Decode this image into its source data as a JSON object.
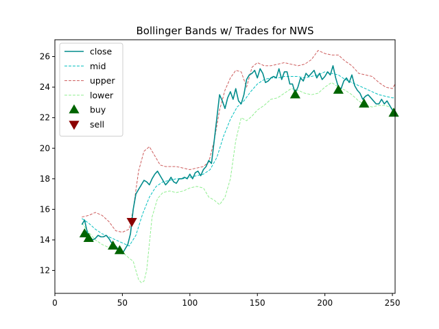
{
  "chart_data": {
    "type": "line",
    "title": "Bollinger Bands w/ Trades for NWS",
    "xlabel": "",
    "ylabel": "",
    "xlim": [
      0,
      252
    ],
    "ylim": [
      10.5,
      27.1
    ],
    "xticks": [
      0,
      50,
      100,
      150,
      200,
      250
    ],
    "yticks": [
      12,
      14,
      16,
      18,
      20,
      22,
      24,
      26
    ],
    "grid": false,
    "legend_position": "top-left",
    "series": [
      {
        "name": "close",
        "color": "#008b8b",
        "style": "solid",
        "points": [
          [
            20,
            15.0
          ],
          [
            22,
            15.3
          ],
          [
            24,
            14.5
          ],
          [
            26,
            14.2
          ],
          [
            28,
            14.0
          ],
          [
            30,
            14.1
          ],
          [
            32,
            14.3
          ],
          [
            34,
            14.2
          ],
          [
            36,
            14.2
          ],
          [
            38,
            14.3
          ],
          [
            40,
            14.1
          ],
          [
            42,
            13.8
          ],
          [
            44,
            13.7
          ],
          [
            46,
            13.5
          ],
          [
            48,
            13.2
          ],
          [
            50,
            13.1
          ],
          [
            52,
            13.4
          ],
          [
            54,
            13.7
          ],
          [
            56,
            14.4
          ],
          [
            58,
            16.0
          ],
          [
            60,
            17.0
          ],
          [
            62,
            17.3
          ],
          [
            64,
            17.6
          ],
          [
            66,
            17.9
          ],
          [
            68,
            17.8
          ],
          [
            70,
            17.6
          ],
          [
            72,
            18.0
          ],
          [
            74,
            18.3
          ],
          [
            76,
            18.5
          ],
          [
            78,
            18.2
          ],
          [
            80,
            17.9
          ],
          [
            82,
            17.6
          ],
          [
            84,
            17.8
          ],
          [
            86,
            18.1
          ],
          [
            88,
            17.8
          ],
          [
            90,
            17.7
          ],
          [
            92,
            18.0
          ],
          [
            94,
            18.0
          ],
          [
            96,
            18.1
          ],
          [
            98,
            18.0
          ],
          [
            100,
            18.3
          ],
          [
            102,
            18.0
          ],
          [
            104,
            18.4
          ],
          [
            106,
            18.5
          ],
          [
            108,
            18.2
          ],
          [
            110,
            18.6
          ],
          [
            112,
            18.8
          ],
          [
            114,
            19.2
          ],
          [
            116,
            19.0
          ],
          [
            118,
            20.5
          ],
          [
            120,
            22.0
          ],
          [
            122,
            23.5
          ],
          [
            124,
            23.1
          ],
          [
            126,
            22.6
          ],
          [
            128,
            23.3
          ],
          [
            130,
            23.7
          ],
          [
            132,
            23.2
          ],
          [
            134,
            23.9
          ],
          [
            136,
            23.1
          ],
          [
            138,
            22.9
          ],
          [
            140,
            23.5
          ],
          [
            142,
            24.5
          ],
          [
            144,
            24.8
          ],
          [
            146,
            24.9
          ],
          [
            148,
            25.1
          ],
          [
            150,
            24.6
          ],
          [
            152,
            25.2
          ],
          [
            154,
            24.9
          ],
          [
            156,
            24.3
          ],
          [
            158,
            24.4
          ],
          [
            160,
            24.6
          ],
          [
            162,
            24.7
          ],
          [
            164,
            24.6
          ],
          [
            166,
            25.2
          ],
          [
            168,
            24.5
          ],
          [
            170,
            25.0
          ],
          [
            172,
            25.0
          ],
          [
            174,
            24.2
          ],
          [
            176,
            24.2
          ],
          [
            178,
            23.6
          ],
          [
            180,
            24.0
          ],
          [
            182,
            24.6
          ],
          [
            184,
            24.4
          ],
          [
            186,
            24.9
          ],
          [
            188,
            24.7
          ],
          [
            190,
            24.9
          ],
          [
            192,
            25.1
          ],
          [
            194,
            24.6
          ],
          [
            196,
            24.9
          ],
          [
            198,
            24.5
          ],
          [
            200,
            24.7
          ],
          [
            202,
            25.0
          ],
          [
            204,
            24.8
          ],
          [
            206,
            25.4
          ],
          [
            208,
            24.6
          ],
          [
            210,
            24.0
          ],
          [
            212,
            23.9
          ],
          [
            214,
            24.4
          ],
          [
            216,
            24.6
          ],
          [
            218,
            24.3
          ],
          [
            220,
            24.8
          ],
          [
            222,
            24.1
          ],
          [
            224,
            23.8
          ],
          [
            226,
            23.6
          ],
          [
            228,
            23.2
          ],
          [
            230,
            23.4
          ],
          [
            232,
            23.5
          ],
          [
            234,
            23.3
          ],
          [
            236,
            23.1
          ],
          [
            238,
            22.9
          ],
          [
            240,
            22.9
          ],
          [
            242,
            23.2
          ],
          [
            244,
            22.9
          ],
          [
            246,
            23.1
          ],
          [
            248,
            22.8
          ],
          [
            250,
            22.5
          ],
          [
            252,
            22.2
          ]
        ]
      },
      {
        "name": "mid",
        "color": "#00bfbf",
        "style": "dashed",
        "points": [
          [
            20,
            15.4
          ],
          [
            25,
            15.1
          ],
          [
            30,
            14.7
          ],
          [
            35,
            14.4
          ],
          [
            40,
            14.2
          ],
          [
            45,
            14.0
          ],
          [
            50,
            13.8
          ],
          [
            55,
            13.6
          ],
          [
            60,
            14.3
          ],
          [
            65,
            15.7
          ],
          [
            70,
            16.8
          ],
          [
            75,
            17.5
          ],
          [
            80,
            17.8
          ],
          [
            85,
            17.9
          ],
          [
            90,
            18.0
          ],
          [
            95,
            18.0
          ],
          [
            100,
            18.1
          ],
          [
            105,
            18.2
          ],
          [
            110,
            18.3
          ],
          [
            115,
            18.6
          ],
          [
            120,
            19.4
          ],
          [
            125,
            20.8
          ],
          [
            130,
            21.9
          ],
          [
            135,
            22.7
          ],
          [
            140,
            23.1
          ],
          [
            145,
            23.7
          ],
          [
            150,
            24.2
          ],
          [
            155,
            24.5
          ],
          [
            160,
            24.6
          ],
          [
            165,
            24.6
          ],
          [
            170,
            24.7
          ],
          [
            175,
            24.7
          ],
          [
            180,
            24.7
          ],
          [
            185,
            24.6
          ],
          [
            190,
            24.7
          ],
          [
            195,
            24.8
          ],
          [
            200,
            25.0
          ],
          [
            205,
            24.9
          ],
          [
            210,
            24.8
          ],
          [
            215,
            24.5
          ],
          [
            220,
            24.3
          ],
          [
            225,
            24.1
          ],
          [
            230,
            23.9
          ],
          [
            235,
            23.7
          ],
          [
            240,
            23.5
          ],
          [
            245,
            23.4
          ],
          [
            250,
            23.3
          ],
          [
            252,
            23.3
          ]
        ]
      },
      {
        "name": "upper",
        "color": "#cd5c5c",
        "style": "dashed",
        "points": [
          [
            20,
            15.5
          ],
          [
            25,
            15.6
          ],
          [
            30,
            15.8
          ],
          [
            35,
            15.6
          ],
          [
            40,
            15.2
          ],
          [
            45,
            14.6
          ],
          [
            50,
            14.5
          ],
          [
            55,
            14.7
          ],
          [
            58,
            16.0
          ],
          [
            62,
            18.5
          ],
          [
            66,
            19.8
          ],
          [
            70,
            20.1
          ],
          [
            74,
            19.5
          ],
          [
            78,
            18.9
          ],
          [
            82,
            18.8
          ],
          [
            86,
            18.8
          ],
          [
            90,
            18.8
          ],
          [
            95,
            18.7
          ],
          [
            100,
            18.6
          ],
          [
            105,
            18.7
          ],
          [
            110,
            18.8
          ],
          [
            114,
            19.1
          ],
          [
            118,
            20.5
          ],
          [
            122,
            22.5
          ],
          [
            126,
            23.8
          ],
          [
            130,
            24.6
          ],
          [
            134,
            25.1
          ],
          [
            138,
            25.0
          ],
          [
            142,
            24.0
          ],
          [
            146,
            25.3
          ],
          [
            150,
            25.6
          ],
          [
            155,
            25.4
          ],
          [
            160,
            25.4
          ],
          [
            165,
            25.5
          ],
          [
            170,
            25.6
          ],
          [
            175,
            25.5
          ],
          [
            180,
            25.4
          ],
          [
            185,
            25.5
          ],
          [
            190,
            25.8
          ],
          [
            195,
            26.4
          ],
          [
            200,
            26.2
          ],
          [
            205,
            26.1
          ],
          [
            210,
            26.1
          ],
          [
            215,
            25.7
          ],
          [
            220,
            25.4
          ],
          [
            225,
            24.9
          ],
          [
            230,
            24.8
          ],
          [
            235,
            24.7
          ],
          [
            240,
            24.3
          ],
          [
            245,
            24.0
          ],
          [
            250,
            23.9
          ],
          [
            252,
            24.2
          ]
        ]
      },
      {
        "name": "lower",
        "color": "#90ee90",
        "style": "dashed",
        "points": [
          [
            20,
            15.1
          ],
          [
            25,
            14.5
          ],
          [
            30,
            14.0
          ],
          [
            35,
            13.7
          ],
          [
            40,
            13.5
          ],
          [
            45,
            13.4
          ],
          [
            50,
            13.2
          ],
          [
            55,
            12.8
          ],
          [
            58,
            12.6
          ],
          [
            60,
            12.0
          ],
          [
            62,
            11.4
          ],
          [
            64,
            11.2
          ],
          [
            66,
            11.3
          ],
          [
            68,
            12.0
          ],
          [
            72,
            15.5
          ],
          [
            76,
            16.7
          ],
          [
            80,
            17.1
          ],
          [
            85,
            17.2
          ],
          [
            90,
            17.1
          ],
          [
            95,
            17.2
          ],
          [
            100,
            17.4
          ],
          [
            105,
            17.5
          ],
          [
            110,
            17.4
          ],
          [
            114,
            16.8
          ],
          [
            118,
            16.6
          ],
          [
            122,
            16.3
          ],
          [
            126,
            16.8
          ],
          [
            130,
            18.0
          ],
          [
            134,
            20.5
          ],
          [
            138,
            22.0
          ],
          [
            142,
            21.8
          ],
          [
            146,
            22.1
          ],
          [
            150,
            22.5
          ],
          [
            155,
            22.8
          ],
          [
            160,
            23.2
          ],
          [
            165,
            23.3
          ],
          [
            170,
            23.6
          ],
          [
            175,
            23.9
          ],
          [
            180,
            23.8
          ],
          [
            185,
            23.6
          ],
          [
            190,
            23.5
          ],
          [
            195,
            23.6
          ],
          [
            200,
            24.0
          ],
          [
            205,
            24.3
          ],
          [
            210,
            24.0
          ],
          [
            215,
            23.8
          ],
          [
            220,
            23.5
          ],
          [
            225,
            23.1
          ],
          [
            230,
            22.8
          ],
          [
            235,
            22.7
          ],
          [
            240,
            22.8
          ],
          [
            245,
            22.8
          ],
          [
            250,
            22.6
          ],
          [
            252,
            22.4
          ]
        ]
      }
    ],
    "trades": [
      {
        "name": "buy",
        "color": "#006400",
        "marker": "triangle-up",
        "points": [
          [
            22,
            14.4
          ],
          [
            25,
            14.1
          ],
          [
            43,
            13.6
          ],
          [
            48,
            13.3
          ],
          [
            178,
            23.5
          ],
          [
            210,
            23.8
          ],
          [
            229,
            22.9
          ],
          [
            251,
            22.3
          ]
        ]
      },
      {
        "name": "sell",
        "color": "#8b0000",
        "marker": "triangle-down",
        "points": [
          [
            57,
            15.2
          ]
        ]
      }
    ]
  }
}
